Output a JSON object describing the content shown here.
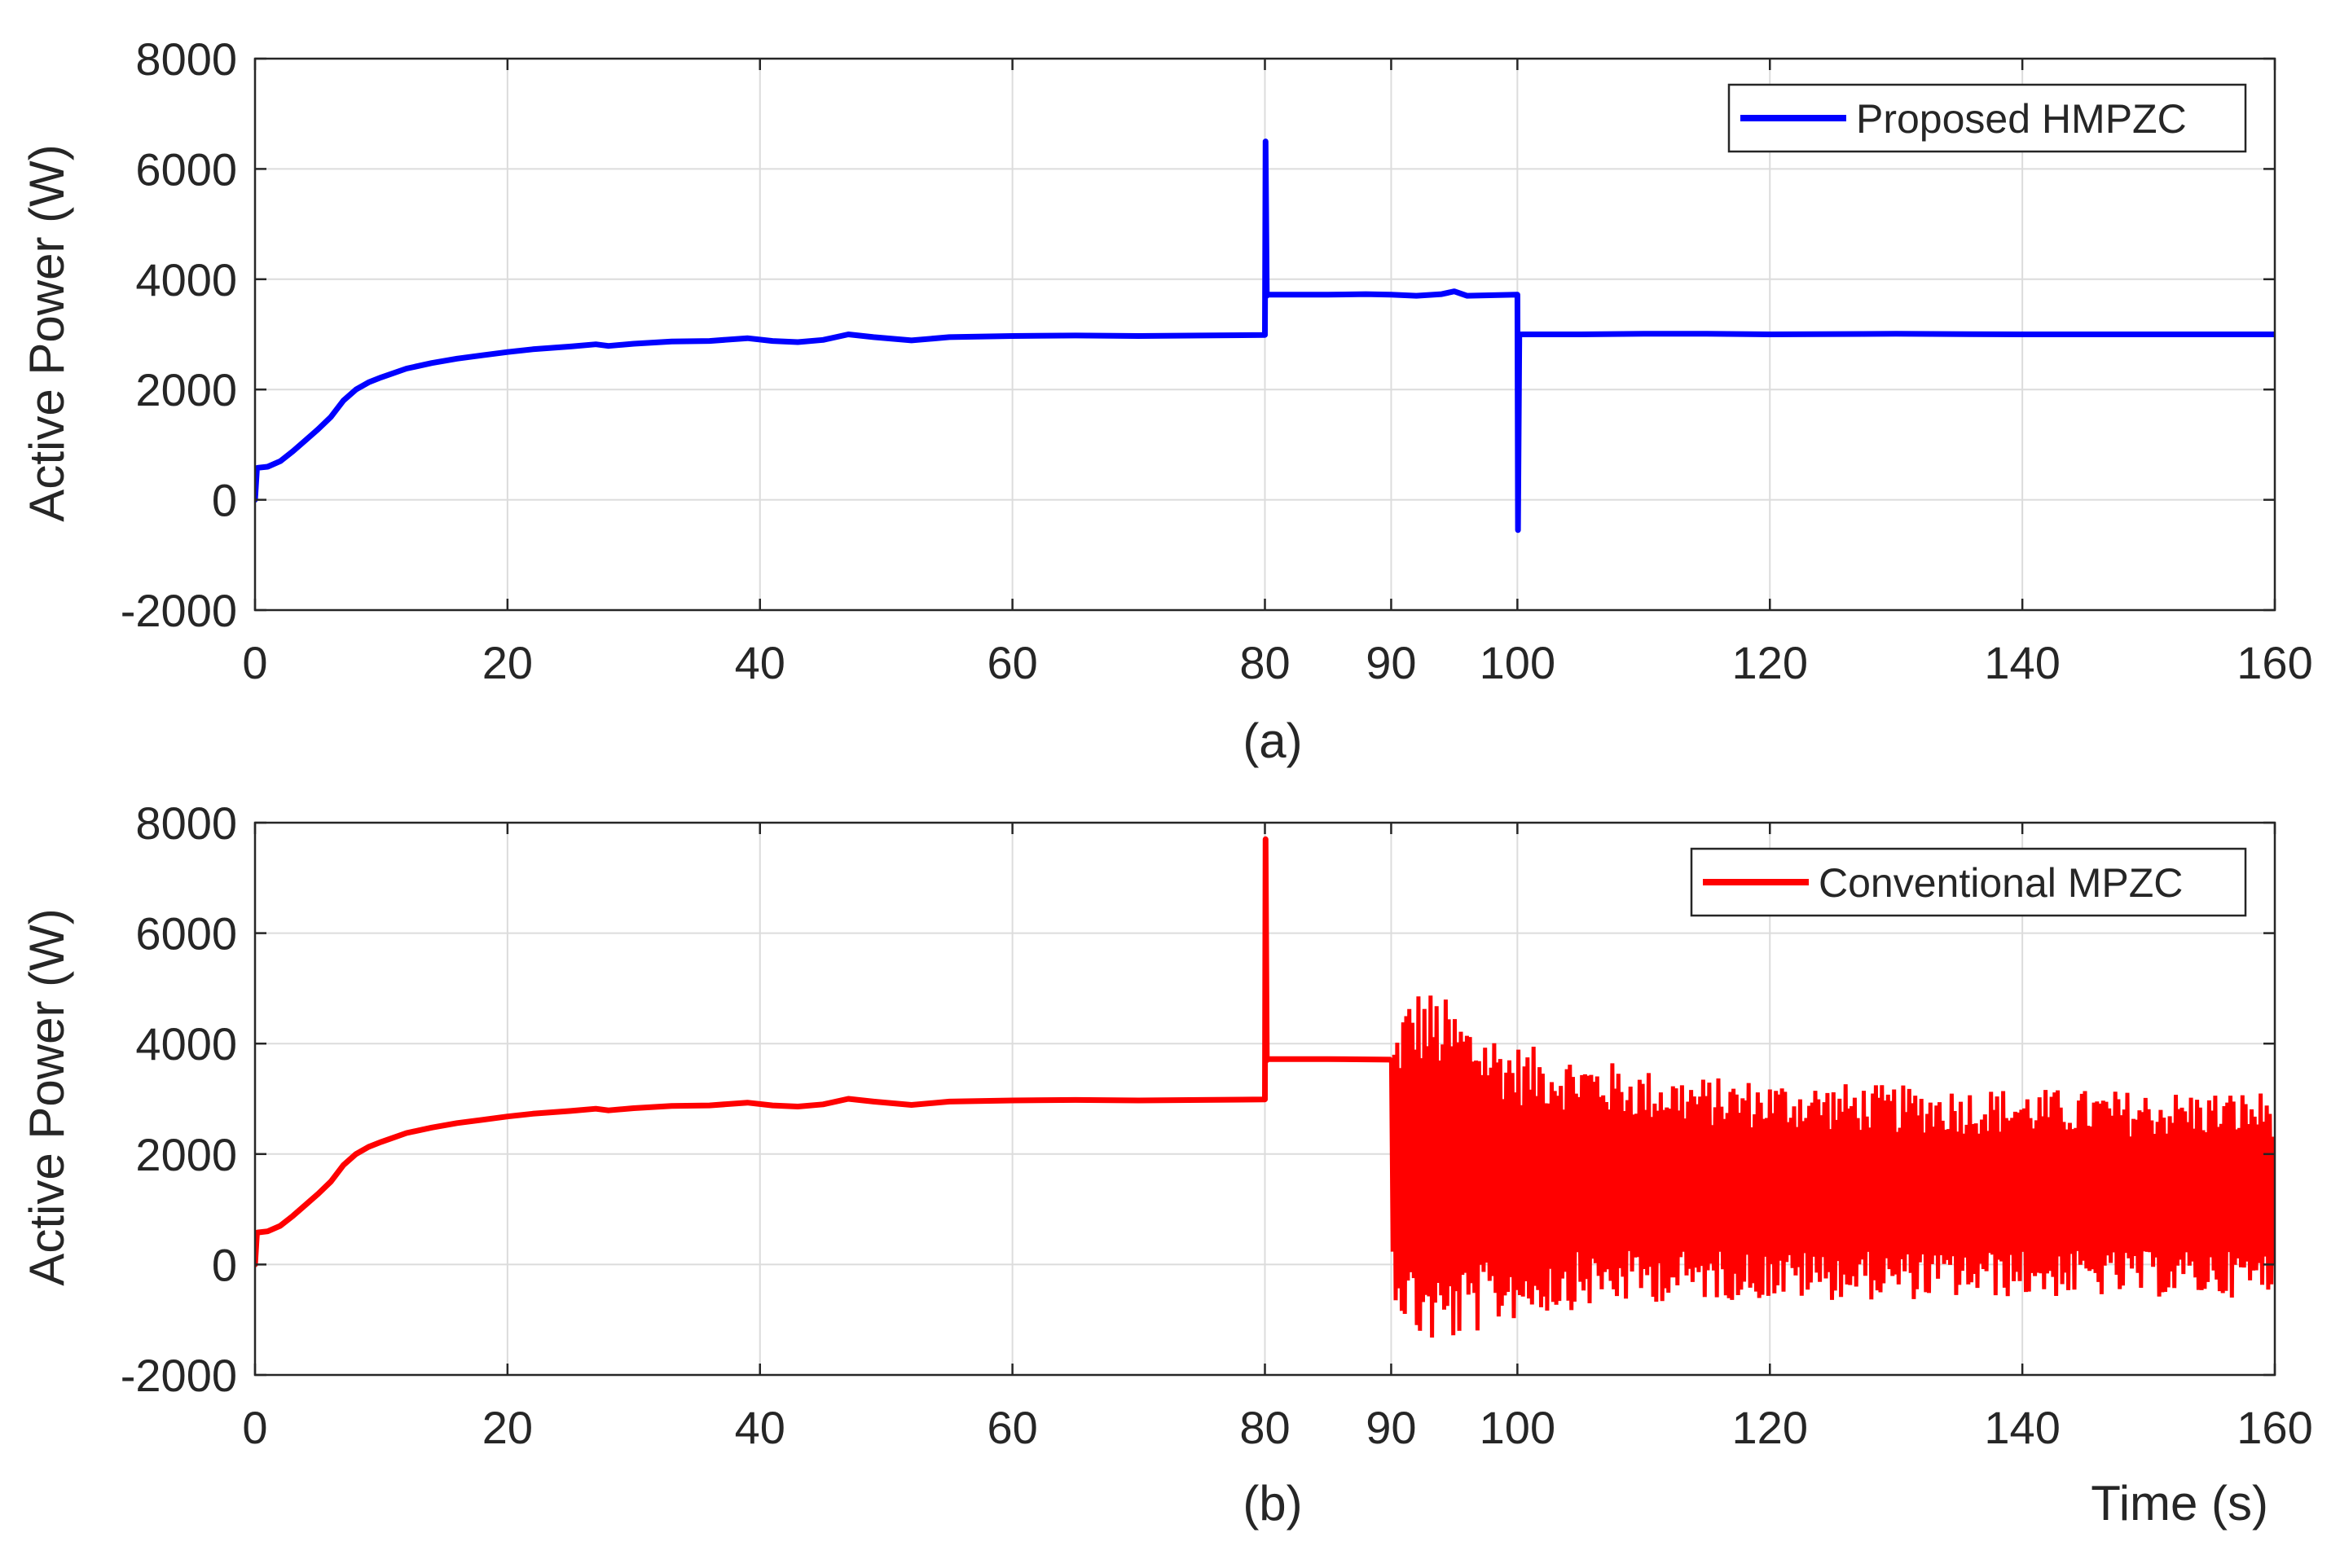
{
  "chart_data": [
    {
      "type": "line",
      "caption": "(a)",
      "xlabel": "",
      "ylabel": "Active Power (W)",
      "xlim": [
        0,
        160
      ],
      "ylim": [
        -2000,
        8000
      ],
      "xticks": [
        0,
        20,
        40,
        60,
        80,
        90,
        100,
        120,
        140,
        160
      ],
      "yticks": [
        -2000,
        0,
        2000,
        4000,
        6000,
        8000
      ],
      "grid": true,
      "legend_position": "top-right",
      "series": [
        {
          "name": "Proposed HMPZC",
          "color": "#0000ff",
          "x": [
            0,
            0.15,
            0.2,
            1,
            2,
            3,
            4,
            5,
            6,
            7,
            8,
            9,
            10,
            12,
            14,
            16,
            18,
            20,
            22,
            25,
            27,
            28,
            30,
            33,
            36,
            39,
            41,
            43,
            45,
            47,
            49,
            52,
            55,
            60,
            65,
            70,
            75,
            79.9,
            80,
            80.05,
            80.15,
            80.2,
            85,
            88,
            90,
            92,
            94,
            95,
            96,
            99.9,
            100,
            100.05,
            100.15,
            100.2,
            105,
            110,
            115,
            120,
            130,
            140,
            150,
            160
          ],
          "y": [
            0,
            550,
            580,
            600,
            700,
            880,
            1080,
            1280,
            1500,
            1800,
            2000,
            2130,
            2220,
            2380,
            2480,
            2560,
            2620,
            2680,
            2730,
            2780,
            2820,
            2790,
            2830,
            2870,
            2880,
            2930,
            2880,
            2860,
            2900,
            3000,
            2950,
            2890,
            2950,
            2970,
            2980,
            2970,
            2980,
            2990,
            2990,
            6500,
            3700,
            3720,
            3720,
            3730,
            3720,
            3700,
            3730,
            3780,
            3700,
            3720,
            3720,
            -550,
            3000,
            3000,
            3000,
            3010,
            3010,
            3000,
            3010,
            3000,
            3000,
            3000
          ]
        }
      ]
    },
    {
      "type": "line",
      "caption": "(b)",
      "xlabel": "Time (s)",
      "ylabel": "Active Power (W)",
      "xlim": [
        0,
        160
      ],
      "ylim": [
        -2000,
        8000
      ],
      "xticks": [
        0,
        20,
        40,
        60,
        80,
        90,
        100,
        120,
        140,
        160
      ],
      "yticks": [
        -2000,
        0,
        2000,
        4000,
        6000,
        8000
      ],
      "grid": true,
      "legend_position": "top-right",
      "series": [
        {
          "name": "Conventional MPZC",
          "color": "#ff0000",
          "x": [
            0,
            0.15,
            0.2,
            1,
            2,
            3,
            4,
            5,
            6,
            7,
            8,
            9,
            10,
            12,
            14,
            16,
            18,
            20,
            22,
            25,
            27,
            28,
            30,
            33,
            36,
            39,
            41,
            43,
            45,
            47,
            49,
            52,
            55,
            60,
            65,
            70,
            75,
            79.9,
            80,
            80.05,
            80.15,
            80.2,
            85,
            89.9
          ],
          "y": [
            0,
            550,
            580,
            600,
            700,
            880,
            1080,
            1280,
            1500,
            1800,
            2000,
            2130,
            2220,
            2380,
            2480,
            2560,
            2620,
            2680,
            2730,
            2780,
            2820,
            2790,
            2830,
            2870,
            2880,
            2930,
            2880,
            2860,
            2900,
            3000,
            2950,
            2890,
            2950,
            2970,
            2980,
            2970,
            2980,
            2990,
            2990,
            7700,
            3700,
            3720,
            3720,
            3710
          ]
        }
      ],
      "oscillation": {
        "x_start": 90,
        "x_end": 160,
        "upper_envelope": {
          "x": [
            90,
            91,
            92,
            93,
            94,
            95,
            97,
            100,
            105,
            110,
            115,
            120,
            130,
            140,
            150,
            160
          ],
          "y": [
            4000,
            4800,
            5050,
            5000,
            4900,
            4700,
            4400,
            4000,
            3800,
            3550,
            3400,
            3350,
            3250,
            3200,
            3150,
            3150
          ]
        },
        "lower_envelope": {
          "x": [
            90,
            91,
            92,
            93,
            94,
            95,
            97,
            100,
            105,
            110,
            115,
            120,
            130,
            140,
            150,
            160
          ],
          "y": [
            -400,
            -1100,
            -1400,
            -1500,
            -1550,
            -1450,
            -1250,
            -1000,
            -800,
            -700,
            -650,
            -650,
            -650,
            -600,
            -600,
            -600
          ]
        }
      }
    }
  ]
}
